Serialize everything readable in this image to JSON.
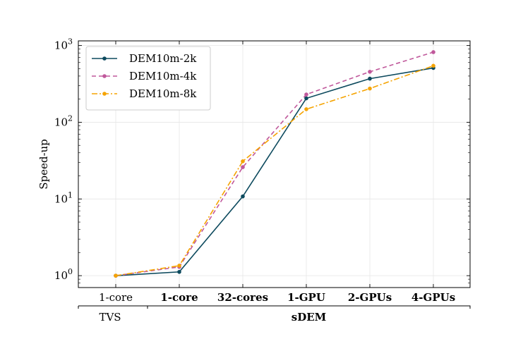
{
  "chart_data": {
    "type": "line",
    "yscale": "log",
    "ylim": [
      0.7,
      1150
    ],
    "ylabel": "Speed-up",
    "yticks": [
      {
        "value": 1,
        "base": "10",
        "exp": "0"
      },
      {
        "value": 10,
        "base": "10",
        "exp": "1"
      },
      {
        "value": 100,
        "base": "10",
        "exp": "2"
      },
      {
        "value": 1000,
        "base": "10",
        "exp": "3"
      }
    ],
    "categories": [
      "1-core",
      "1-core",
      "32-cores",
      "1-GPU",
      "2-GPUs",
      "4-GPUs"
    ],
    "category_bold": [
      false,
      true,
      true,
      true,
      true,
      true
    ],
    "groups": [
      {
        "label": "TVS",
        "start": 0,
        "end": 0
      },
      {
        "label": "sDEM",
        "start": 1,
        "end": 5
      }
    ],
    "grid": true,
    "legend_position": "top-left",
    "series": [
      {
        "name": "DEM10m-2k",
        "color": "#0d4a5e",
        "dash": "solid",
        "values": [
          1.0,
          1.12,
          10.8,
          205,
          370,
          510
        ]
      },
      {
        "name": "DEM10m-4k",
        "color": "#c0589b",
        "dash": "dashed",
        "values": [
          1.0,
          1.3,
          26,
          230,
          455,
          820
        ]
      },
      {
        "name": "DEM10m-8k",
        "color": "#f5a300",
        "dash": "dashdot",
        "values": [
          1.0,
          1.35,
          31,
          148,
          275,
          545
        ]
      }
    ]
  }
}
